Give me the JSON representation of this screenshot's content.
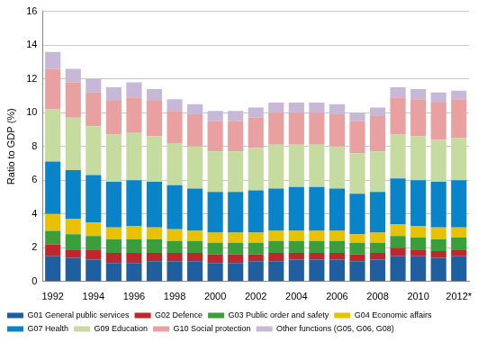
{
  "chart_data": {
    "type": "bar",
    "stacked": true,
    "grid": true,
    "legend": "bottom",
    "y_label": "Ratio to GDP (%)",
    "ylim": [
      0,
      16
    ],
    "yticks": [
      0,
      2,
      4,
      6,
      8,
      10,
      12,
      14,
      16
    ],
    "categories": [
      "1992",
      null,
      "1994",
      null,
      "1996",
      null,
      "1998",
      null,
      "2000",
      null,
      "2002",
      null,
      "2004",
      null,
      "2006",
      null,
      "2008",
      null,
      "2010",
      null,
      "2012*"
    ],
    "series": [
      {
        "name": "G01 General public services",
        "color": "#1f5fa0",
        "values": [
          1.5,
          1.4,
          1.3,
          1.1,
          1.1,
          1.2,
          1.2,
          1.2,
          1.1,
          1.1,
          1.2,
          1.2,
          1.3,
          1.3,
          1.3,
          1.2,
          1.3,
          1.5,
          1.5,
          1.4,
          1.5
        ]
      },
      {
        "name": "G02 Defence",
        "color": "#c0272d",
        "values": [
          0.7,
          0.5,
          0.6,
          0.6,
          0.6,
          0.5,
          0.5,
          0.5,
          0.5,
          0.5,
          0.4,
          0.5,
          0.4,
          0.4,
          0.4,
          0.4,
          0.4,
          0.5,
          0.4,
          0.4,
          0.4
        ]
      },
      {
        "name": "G03 Public order and safety",
        "color": "#3a9e3a",
        "values": [
          0.8,
          0.9,
          0.8,
          0.8,
          0.8,
          0.8,
          0.7,
          0.7,
          0.7,
          0.7,
          0.7,
          0.7,
          0.7,
          0.7,
          0.7,
          0.7,
          0.6,
          0.7,
          0.7,
          0.7,
          0.7
        ]
      },
      {
        "name": "G04 Economic affairs",
        "color": "#e8c200",
        "values": [
          1.0,
          0.9,
          0.8,
          0.7,
          0.8,
          0.7,
          0.7,
          0.6,
          0.6,
          0.6,
          0.6,
          0.6,
          0.6,
          0.6,
          0.6,
          0.5,
          0.6,
          0.7,
          0.7,
          0.7,
          0.6
        ]
      },
      {
        "name": "G07 Health",
        "color": "#0a84c8",
        "values": [
          3.1,
          2.9,
          2.8,
          2.7,
          2.7,
          2.7,
          2.6,
          2.5,
          2.4,
          2.4,
          2.5,
          2.5,
          2.6,
          2.6,
          2.5,
          2.4,
          2.4,
          2.7,
          2.7,
          2.7,
          2.8
        ]
      },
      {
        "name": "G09 Education",
        "color": "#c5dba0",
        "values": [
          3.1,
          3.1,
          2.9,
          2.8,
          2.8,
          2.7,
          2.5,
          2.5,
          2.4,
          2.4,
          2.5,
          2.6,
          2.5,
          2.5,
          2.5,
          2.4,
          2.4,
          2.6,
          2.6,
          2.5,
          2.5
        ]
      },
      {
        "name": "G10 Social protection",
        "color": "#e8a0a0",
        "values": [
          2.4,
          2.1,
          2.0,
          2.0,
          2.1,
          2.1,
          1.9,
          1.9,
          1.8,
          1.8,
          1.8,
          1.9,
          1.9,
          1.9,
          1.9,
          1.9,
          2.1,
          2.2,
          2.2,
          2.2,
          2.3
        ]
      },
      {
        "name": "Other functions (G05, G06, G08)",
        "color": "#c8b8d8",
        "values": [
          1.0,
          0.8,
          0.8,
          0.8,
          0.9,
          0.7,
          0.7,
          0.6,
          0.6,
          0.6,
          0.6,
          0.6,
          0.6,
          0.6,
          0.6,
          0.5,
          0.5,
          0.6,
          0.6,
          0.6,
          0.5
        ]
      }
    ]
  }
}
